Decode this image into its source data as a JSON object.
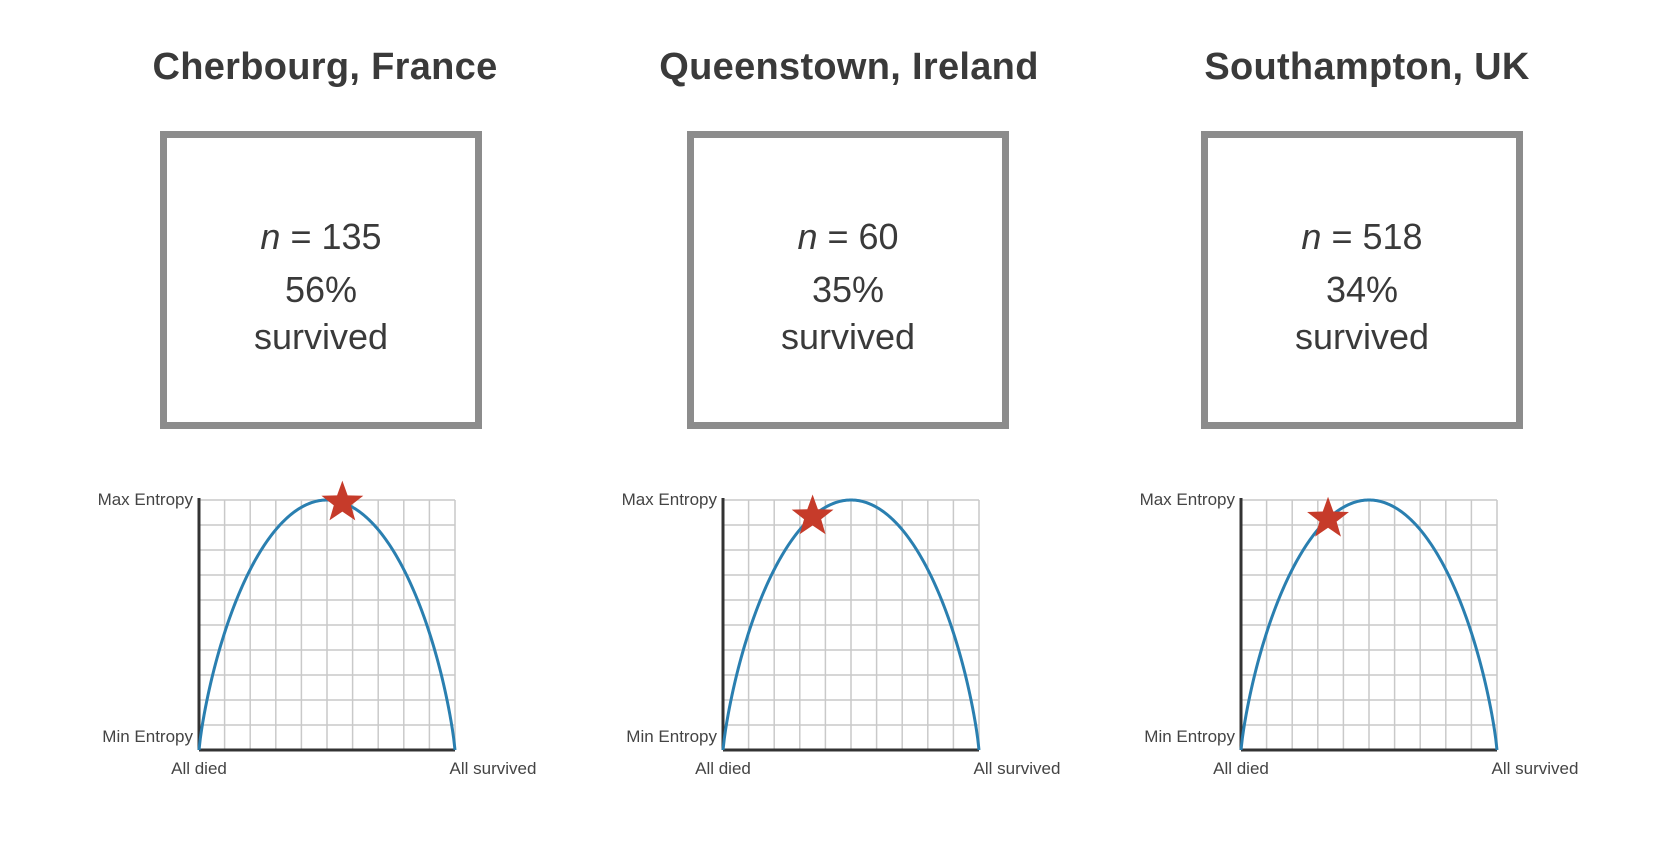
{
  "axis": {
    "y_top": "Max Entropy",
    "y_bottom": "Min Entropy",
    "x_left": "All died",
    "x_right": "All survived"
  },
  "colors": {
    "curve": "#2a7fb0",
    "star": "#c63b2a",
    "grid": "#c9c9c9",
    "axis": "#333333",
    "box_border": "#8c8c8c"
  },
  "panels": [
    {
      "title": "Cherbourg, France",
      "n_prefix": "n",
      "n_value": "= 135",
      "pct": "56%",
      "survived": "survived"
    },
    {
      "title": "Queenstown, Ireland",
      "n_prefix": "n",
      "n_value": "= 60",
      "pct": "35%",
      "survived": "survived"
    },
    {
      "title": "Southampton, UK",
      "n_prefix": "n",
      "n_value": "= 518",
      "pct": "34%",
      "survived": "survived"
    }
  ],
  "chart_data": [
    {
      "type": "line",
      "xlabel": "",
      "ylabel": "",
      "x_range_labels": [
        "All died",
        "All survived"
      ],
      "y_range_labels": [
        "Min Entropy",
        "Max Entropy"
      ],
      "curve": "binary entropy",
      "xlim": [
        0,
        1
      ],
      "ylim": [
        0,
        1
      ],
      "marker": {
        "shape": "star",
        "x": 0.56
      },
      "grid": true
    },
    {
      "type": "line",
      "xlabel": "",
      "ylabel": "",
      "x_range_labels": [
        "All died",
        "All survived"
      ],
      "y_range_labels": [
        "Min Entropy",
        "Max Entropy"
      ],
      "curve": "binary entropy",
      "xlim": [
        0,
        1
      ],
      "ylim": [
        0,
        1
      ],
      "marker": {
        "shape": "star",
        "x": 0.35
      },
      "grid": true
    },
    {
      "type": "line",
      "xlabel": "",
      "ylabel": "",
      "x_range_labels": [
        "All died",
        "All survived"
      ],
      "y_range_labels": [
        "Min Entropy",
        "Max Entropy"
      ],
      "curve": "binary entropy",
      "xlim": [
        0,
        1
      ],
      "ylim": [
        0,
        1
      ],
      "marker": {
        "shape": "star",
        "x": 0.34
      },
      "grid": true
    }
  ]
}
